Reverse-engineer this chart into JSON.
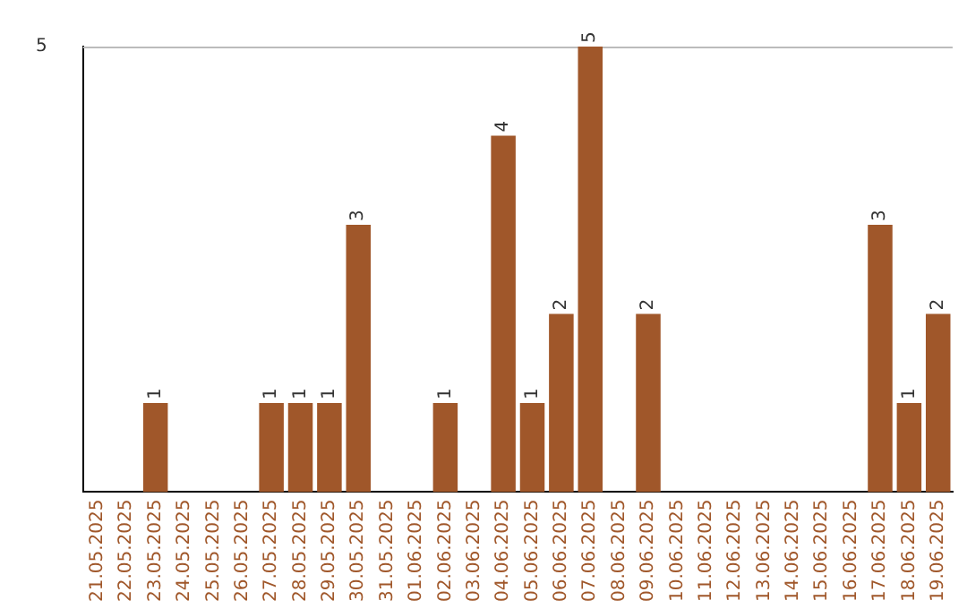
{
  "chart_data": {
    "type": "bar",
    "categories": [
      "21.05.2025",
      "22.05.2025",
      "23.05.2025",
      "24.05.2025",
      "25.05.2025",
      "26.05.2025",
      "27.05.2025",
      "28.05.2025",
      "29.05.2025",
      "30.05.2025",
      "31.05.2025",
      "01.06.2025",
      "02.06.2025",
      "03.06.2025",
      "04.06.2025",
      "05.06.2025",
      "06.06.2025",
      "07.06.2025",
      "08.06.2025",
      "09.06.2025",
      "10.06.2025",
      "11.06.2025",
      "12.06.2025",
      "13.06.2025",
      "14.06.2025",
      "15.06.2025",
      "16.06.2025",
      "17.06.2025",
      "18.06.2025",
      "19.06.2025"
    ],
    "values": [
      0,
      0,
      1,
      0,
      0,
      0,
      1,
      1,
      1,
      3,
      0,
      0,
      1,
      0,
      4,
      1,
      2,
      5,
      0,
      2,
      0,
      0,
      0,
      0,
      0,
      0,
      0,
      3,
      1,
      2
    ],
    "value_labels": [
      null,
      null,
      "1",
      null,
      null,
      null,
      "1",
      "1",
      "1",
      "3",
      null,
      null,
      "1",
      null,
      "4",
      "1",
      "2",
      "5",
      null,
      "2",
      null,
      null,
      null,
      null,
      null,
      null,
      null,
      "3",
      "1",
      "2"
    ],
    "color": "#a0572a",
    "ylim": [
      0,
      5
    ],
    "yticks": [
      5
    ],
    "ref_lines": [
      {
        "axis": "y",
        "value": 5,
        "color": "#bbbbbb"
      }
    ],
    "legend": false
  }
}
